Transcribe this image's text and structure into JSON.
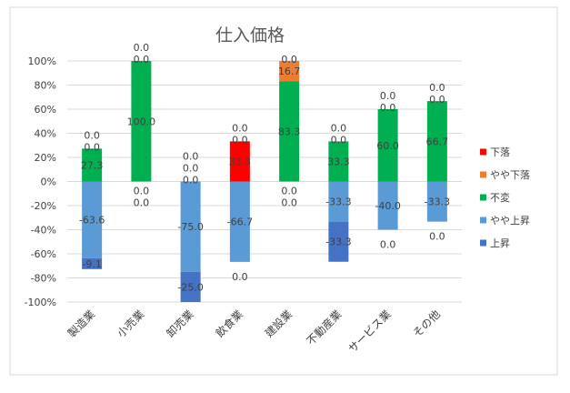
{
  "chart_data": {
    "type": "bar",
    "stacked": true,
    "title": "仕入価格",
    "xlabel": "",
    "ylabel": "",
    "categories": [
      "製造業",
      "小売業",
      "卸売業",
      "飲食業",
      "建設業",
      "不動産業",
      "サービス業",
      "その他"
    ],
    "ylim": [
      -100,
      100
    ],
    "yticks": [
      "-100%",
      "-80%",
      "-60%",
      "-40%",
      "-20%",
      "0%",
      "20%",
      "40%",
      "60%",
      "80%",
      "100%"
    ],
    "grid": true,
    "legend_position": "right",
    "series": [
      {
        "name": "下落",
        "color": "#ff0000",
        "values": [
          0.0,
          0.0,
          0.0,
          33.3,
          0.0,
          0.0,
          0.0,
          0.0
        ],
        "labels": [
          "0.0",
          "0.0",
          "0.0",
          "33.3",
          "0.0",
          "0.0",
          "0.0",
          "0.0"
        ]
      },
      {
        "name": "やや下落",
        "color": "#ed7d31",
        "values": [
          0.0,
          0.0,
          0.0,
          0.0,
          16.7,
          0.0,
          0.0,
          0.0
        ],
        "labels": [
          "0.0",
          "0.0",
          "0.0",
          "0.0",
          "16.7",
          "0.0",
          "0.0",
          "0.0"
        ]
      },
      {
        "name": "不変",
        "color": "#00b050",
        "values": [
          27.3,
          100.0,
          0.0,
          0.0,
          83.3,
          33.3,
          60.0,
          66.7
        ],
        "labels": [
          "27.3",
          "100.0",
          "0.0",
          "0.0",
          "83.3",
          "33.3",
          "60.0",
          "66.7"
        ]
      },
      {
        "name": "やや上昇",
        "color": "#5b9bd5",
        "values": [
          -63.6,
          0.0,
          -75.0,
          -66.7,
          0.0,
          -33.3,
          -40.0,
          -33.3
        ],
        "labels": [
          "-63.6",
          "0.0",
          "-75.0",
          "-66.7",
          "0.0",
          "-33.3",
          "-40.0",
          "-33.3"
        ]
      },
      {
        "name": "上昇",
        "color": "#4472c4",
        "values": [
          -9.1,
          0.0,
          -25.0,
          0.0,
          0.0,
          -33.3,
          0.0,
          0.0
        ],
        "labels": [
          "-9.1",
          "0.0",
          "-25.0",
          "0.0",
          "0.0",
          "-33.3",
          "0.0",
          "0.0"
        ]
      }
    ]
  }
}
